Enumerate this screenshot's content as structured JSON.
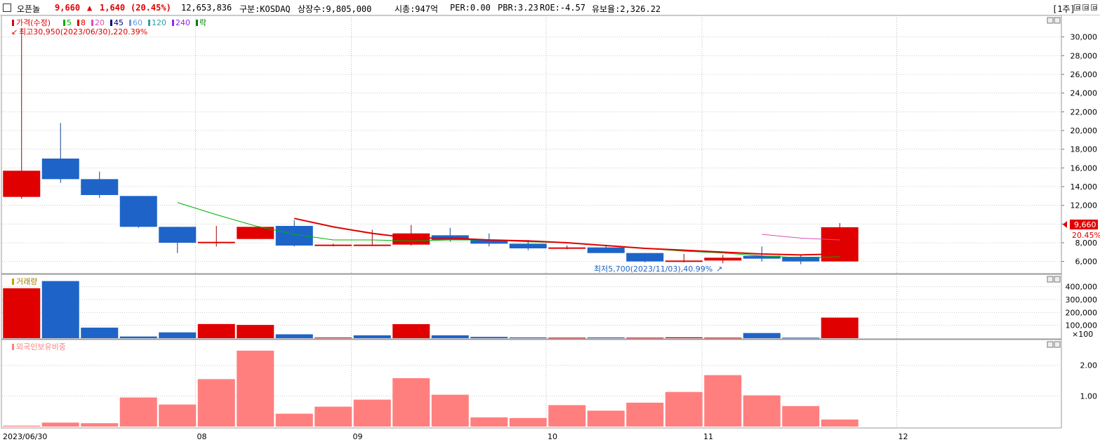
{
  "header": {
    "name": "오픈놀",
    "price": "9,660",
    "change_arrow": "▲",
    "change": "1,640",
    "change_pct": "(20.45%)",
    "volume": "12,653,836",
    "market": "구분:KOSDAQ",
    "listed_shares": "상장수:9,805,000",
    "market_cap": "시총:947억",
    "per": "PER:0.00",
    "pbr": "PBR:3.23",
    "roe": "ROE:-4.57",
    "reserve": "유보율:2,326.22",
    "period_button": "[1주]",
    "colors": {
      "up": "#e00000",
      "down": "#1e64c8",
      "text": "#000000"
    }
  },
  "legend": {
    "price_label": "가격(수정)",
    "ma_labels": [
      {
        "label": "5",
        "color": "#00b000"
      },
      {
        "label": "8",
        "color": "#e00000"
      },
      {
        "label": "20",
        "color": "#d84fb4"
      },
      {
        "label": "45",
        "color": "#000080"
      },
      {
        "label": "60",
        "color": "#6a9bd8"
      },
      {
        "label": "120",
        "color": "#2aa198"
      },
      {
        "label": "240",
        "color": "#8a2be2"
      },
      {
        "label": "락",
        "color": "#008000"
      }
    ],
    "volume_label": "거래량",
    "foreign_label": "외국인보유비중"
  },
  "annotations": {
    "high": "최고30,950(2023/06/30),220.39%",
    "low": "최저5,700(2023/11/03),40.99%"
  },
  "right_labels": {
    "current_price": "9,660",
    "current_pct": "20.45%",
    "volume_unit": "×100"
  },
  "chart_data": [
    {
      "type": "candlestick",
      "title": "가격(수정)",
      "period": "weekly",
      "ylim": [
        5000,
        32000
      ],
      "y_ticks": [
        "6,000",
        "8,000",
        "10,000",
        "12,000",
        "14,000",
        "16,000",
        "18,000",
        "20,000",
        "22,000",
        "24,000",
        "26,000",
        "28,000",
        "30,000"
      ],
      "y_tick_values": [
        6000,
        8000,
        10000,
        12000,
        14000,
        16000,
        18000,
        20000,
        22000,
        24000,
        26000,
        28000,
        30000
      ],
      "candles": [
        {
          "o": 12900,
          "h": 30950,
          "l": 12700,
          "c": 15700
        },
        {
          "o": 17000,
          "h": 20800,
          "l": 14400,
          "c": 14800
        },
        {
          "o": 14800,
          "h": 15600,
          "l": 12800,
          "c": 13100
        },
        {
          "o": 13000,
          "h": 13000,
          "l": 9600,
          "c": 9700
        },
        {
          "o": 9700,
          "h": 9700,
          "l": 6900,
          "c": 8000
        },
        {
          "o": 8000,
          "h": 9800,
          "l": 7600,
          "c": 8100
        },
        {
          "o": 8400,
          "h": 9700,
          "l": 8400,
          "c": 9700
        },
        {
          "o": 9800,
          "h": 10400,
          "l": 7600,
          "c": 7700
        },
        {
          "o": 7700,
          "h": 7900,
          "l": 7600,
          "c": 7800
        },
        {
          "o": 7800,
          "h": 9400,
          "l": 7700,
          "c": 7800
        },
        {
          "o": 7800,
          "h": 9900,
          "l": 7700,
          "c": 9000
        },
        {
          "o": 8800,
          "h": 9600,
          "l": 8100,
          "c": 8300
        },
        {
          "o": 8300,
          "h": 9000,
          "l": 7600,
          "c": 7900
        },
        {
          "o": 7900,
          "h": 8300,
          "l": 7200,
          "c": 7400
        },
        {
          "o": 7500,
          "h": 7700,
          "l": 7300,
          "c": 7500
        },
        {
          "o": 7500,
          "h": 7800,
          "l": 6900,
          "c": 6900
        },
        {
          "o": 6900,
          "h": 6900,
          "l": 5900,
          "c": 6000
        },
        {
          "o": 6000,
          "h": 6800,
          "l": 5900,
          "c": 6100
        },
        {
          "o": 6100,
          "h": 6700,
          "l": 5800,
          "c": 6400
        },
        {
          "o": 6600,
          "h": 7600,
          "l": 6000,
          "c": 6300
        },
        {
          "o": 6500,
          "h": 6700,
          "l": 5700,
          "c": 6000
        },
        {
          "o": 6000,
          "h": 10100,
          "l": 6000,
          "c": 9660
        }
      ],
      "ma_series": [
        {
          "name": "5",
          "color": "#00b000",
          "start_index": 4,
          "values": [
            12300,
            11000,
            9800,
            8900,
            8300,
            8300,
            8200,
            8300,
            8300,
            8100,
            8000,
            7700,
            7400,
            7100,
            6900,
            6600,
            6400,
            6500
          ]
        },
        {
          "name": "8",
          "color": "#e00000",
          "start_index": 7,
          "values": [
            10600,
            9700,
            9000,
            8500,
            8500,
            8300,
            8200,
            8000,
            7700,
            7400,
            7200,
            7000,
            6800,
            6700,
            6800
          ]
        },
        {
          "name": "20",
          "color": "#d84fb4",
          "start_index": 19,
          "values": [
            8900,
            8500,
            8300
          ]
        }
      ]
    },
    {
      "type": "bar",
      "title": "거래량",
      "unit": "×100",
      "ylim": [
        0,
        480000
      ],
      "y_ticks": [
        "100,000",
        "200,000",
        "300,000",
        "400,000"
      ],
      "y_tick_values": [
        100000,
        200000,
        300000,
        400000
      ],
      "values": [
        388000,
        444000,
        82000,
        13000,
        45000,
        110000,
        103000,
        30000,
        5000,
        22000,
        109000,
        22000,
        10000,
        6000,
        4000,
        6000,
        4000,
        7000,
        4000,
        40000,
        4000,
        160000
      ],
      "colors_per_bar": [
        "up",
        "down",
        "down",
        "down",
        "down",
        "up",
        "up",
        "down",
        "up",
        "down",
        "up",
        "down",
        "down",
        "down",
        "up",
        "down",
        "up",
        "up",
        "up",
        "down",
        "down",
        "up"
      ]
    },
    {
      "type": "bar",
      "title": "외국인보유비중",
      "color": "#ff7f7f",
      "ylim": [
        0,
        2.75
      ],
      "y_ticks": [
        "1.00",
        "2.00"
      ],
      "y_tick_values": [
        1.0,
        2.0
      ],
      "values": [
        0.03,
        0.13,
        0.11,
        0.95,
        0.72,
        1.55,
        2.48,
        0.42,
        0.65,
        0.88,
        1.58,
        1.04,
        0.3,
        0.28,
        0.7,
        0.52,
        0.78,
        1.13,
        1.68,
        1.02,
        0.67,
        0.23
      ]
    }
  ],
  "x_axis": {
    "labels": [
      {
        "text": "2023/06/30",
        "index": 0
      },
      {
        "text": "08",
        "index": 5
      },
      {
        "text": "09",
        "index": 9
      },
      {
        "text": "10",
        "index": 14
      },
      {
        "text": "11",
        "index": 18
      },
      {
        "text": "12",
        "index": 23
      }
    ]
  }
}
